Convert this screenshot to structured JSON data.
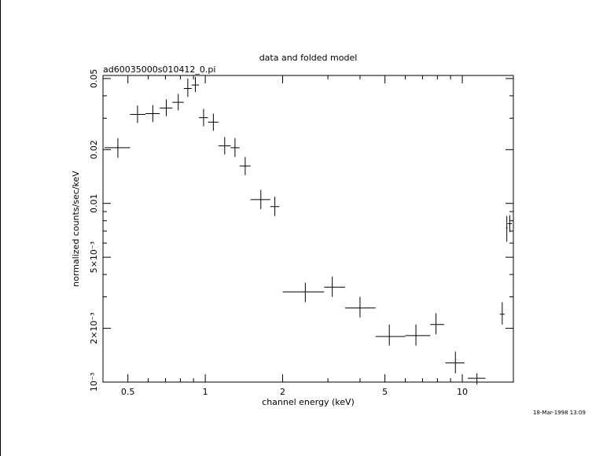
{
  "chart_data": {
    "type": "scatter",
    "title": "data and folded model",
    "subtitle": "ad60035000s010412_0.pi",
    "xlabel": "channel energy (keV)",
    "ylabel": "normalized counts/sec/keV",
    "x_scale": "log",
    "y_scale": "log",
    "xlim": [
      0.4,
      15.8
    ],
    "ylim": [
      0.001,
      0.052
    ],
    "x_ticks": [
      {
        "value": 0.5,
        "label": "0.5"
      },
      {
        "value": 1,
        "label": "1"
      },
      {
        "value": 2,
        "label": "2"
      },
      {
        "value": 5,
        "label": "5"
      },
      {
        "value": 10,
        "label": "10"
      }
    ],
    "y_ticks": [
      {
        "value": 0.001,
        "label": "10⁻³"
      },
      {
        "value": 0.002,
        "label": "2×10⁻³"
      },
      {
        "value": 0.005,
        "label": "5×10⁻³"
      },
      {
        "value": 0.01,
        "label": "0.01"
      },
      {
        "value": 0.02,
        "label": "0.02"
      },
      {
        "value": 0.05,
        "label": "0.05"
      }
    ],
    "grid": false,
    "points": [
      {
        "x": 0.457,
        "y": 0.0205,
        "x_low": 0.405,
        "x_high": 0.51,
        "y_low": 0.018,
        "y_high": 0.0232
      },
      {
        "x": 0.545,
        "y": 0.0315,
        "x_low": 0.51,
        "x_high": 0.585,
        "y_low": 0.0282,
        "y_high": 0.0353
      },
      {
        "x": 0.625,
        "y": 0.0318,
        "x_low": 0.585,
        "x_high": 0.665,
        "y_low": 0.0285,
        "y_high": 0.0355
      },
      {
        "x": 0.705,
        "y": 0.0342,
        "x_low": 0.665,
        "x_high": 0.745,
        "y_low": 0.0308,
        "y_high": 0.0382
      },
      {
        "x": 0.785,
        "y": 0.0368,
        "x_low": 0.745,
        "x_high": 0.825,
        "y_low": 0.0332,
        "y_high": 0.041
      },
      {
        "x": 0.855,
        "y": 0.044,
        "x_low": 0.825,
        "x_high": 0.885,
        "y_low": 0.0395,
        "y_high": 0.05
      },
      {
        "x": 0.915,
        "y": 0.046,
        "x_low": 0.885,
        "x_high": 0.945,
        "y_low": 0.042,
        "y_high": 0.051
      },
      {
        "x": 0.985,
        "y": 0.0302,
        "x_low": 0.945,
        "x_high": 1.025,
        "y_low": 0.027,
        "y_high": 0.0338
      },
      {
        "x": 1.075,
        "y": 0.0285,
        "x_low": 1.025,
        "x_high": 1.125,
        "y_low": 0.0255,
        "y_high": 0.0318
      },
      {
        "x": 1.19,
        "y": 0.021,
        "x_low": 1.125,
        "x_high": 1.255,
        "y_low": 0.0188,
        "y_high": 0.0235
      },
      {
        "x": 1.305,
        "y": 0.0205,
        "x_low": 1.255,
        "x_high": 1.36,
        "y_low": 0.0182,
        "y_high": 0.0232
      },
      {
        "x": 1.43,
        "y": 0.0162,
        "x_low": 1.36,
        "x_high": 1.5,
        "y_low": 0.0144,
        "y_high": 0.0182
      },
      {
        "x": 1.645,
        "y": 0.0105,
        "x_low": 1.5,
        "x_high": 1.79,
        "y_low": 0.0093,
        "y_high": 0.0119
      },
      {
        "x": 1.865,
        "y": 0.0096,
        "x_low": 1.79,
        "x_high": 1.94,
        "y_low": 0.0085,
        "y_high": 0.0109
      },
      {
        "x": 2.45,
        "y": 0.0032,
        "x_low": 2.0,
        "x_high": 2.9,
        "y_low": 0.0028,
        "y_high": 0.0036
      },
      {
        "x": 3.12,
        "y": 0.0034,
        "x_low": 2.9,
        "x_high": 3.5,
        "y_low": 0.003,
        "y_high": 0.0039
      },
      {
        "x": 4.0,
        "y": 0.0026,
        "x_low": 3.5,
        "x_high": 4.6,
        "y_low": 0.0023,
        "y_high": 0.003
      },
      {
        "x": 5.2,
        "y": 0.0018,
        "x_low": 4.6,
        "x_high": 6.0,
        "y_low": 0.0016,
        "y_high": 0.0021
      },
      {
        "x": 6.6,
        "y": 0.00182,
        "x_low": 6.0,
        "x_high": 7.5,
        "y_low": 0.0016,
        "y_high": 0.0021
      },
      {
        "x": 7.9,
        "y": 0.0021,
        "x_low": 7.5,
        "x_high": 8.5,
        "y_low": 0.00185,
        "y_high": 0.00243
      },
      {
        "x": 9.4,
        "y": 0.00128,
        "x_low": 8.6,
        "x_high": 10.2,
        "y_low": 0.00112,
        "y_high": 0.00148
      },
      {
        "x": 11.4,
        "y": 0.00105,
        "x_low": 10.5,
        "x_high": 12.3,
        "y_low": 0.00097,
        "y_high": 0.00112
      },
      {
        "x": 14.3,
        "y": 0.0024,
        "x_low": 14.0,
        "x_high": 14.6,
        "y_low": 0.0021,
        "y_high": 0.0028
      },
      {
        "x": 14.9,
        "y": 0.0073,
        "x_low": 14.8,
        "x_high": 15.0,
        "y_low": 0.0061,
        "y_high": 0.0085
      },
      {
        "x": 15.3,
        "y": 0.0077,
        "x_low": 15.0,
        "x_high": 15.6,
        "y_low": 0.0069,
        "y_high": 0.0086
      }
    ]
  },
  "footer": {
    "timestamp": "18-Mar-1998 13:09"
  }
}
